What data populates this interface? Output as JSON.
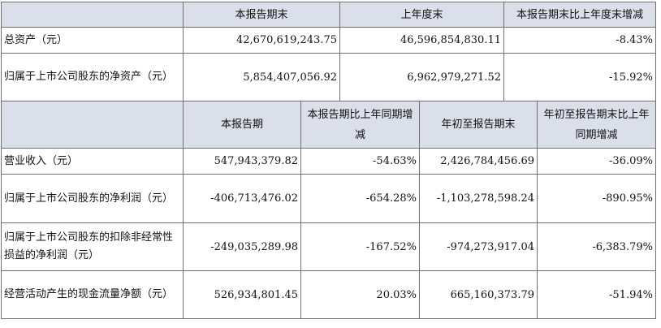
{
  "section1": {
    "headers": [
      "本报告期末",
      "上年度末",
      "本报告期末比上年度末增减"
    ],
    "rows": [
      {
        "label": "总资产（元）",
        "values": [
          "42,670,619,243.75",
          "46,596,854,830.11",
          "-8.43%"
        ]
      },
      {
        "label": "归属于上市公司股东的净资产（元）",
        "values": [
          "5,854,407,056.92",
          "6,962,979,271.52",
          "-15.92%"
        ]
      }
    ]
  },
  "section2": {
    "headers": [
      "本报告期",
      "本报告期比上年同期增减",
      "年初至报告期末",
      "年初至报告期末比上年同期增减"
    ],
    "rows": [
      {
        "label": "营业收入（元）",
        "values": [
          "547,943,379.82",
          "-54.63%",
          "2,426,784,456.69",
          "-36.09%"
        ]
      },
      {
        "label": "归属于上市公司股东的净利润（元）",
        "values": [
          "-406,713,476.02",
          "-654.28%",
          "-1,103,278,598.24",
          "-890.95%"
        ]
      },
      {
        "label": "归属于上市公司股东的扣除非经常性损益的净利润（元）",
        "values": [
          "-249,035,289.98",
          "-167.52%",
          "-974,273,917.04",
          "-6,383.79%"
        ]
      },
      {
        "label": "经营活动产生的现金流量净额（元）",
        "values": [
          "526,934,801.45",
          "20.03%",
          "665,160,373.79",
          "-51.94%"
        ]
      }
    ]
  }
}
